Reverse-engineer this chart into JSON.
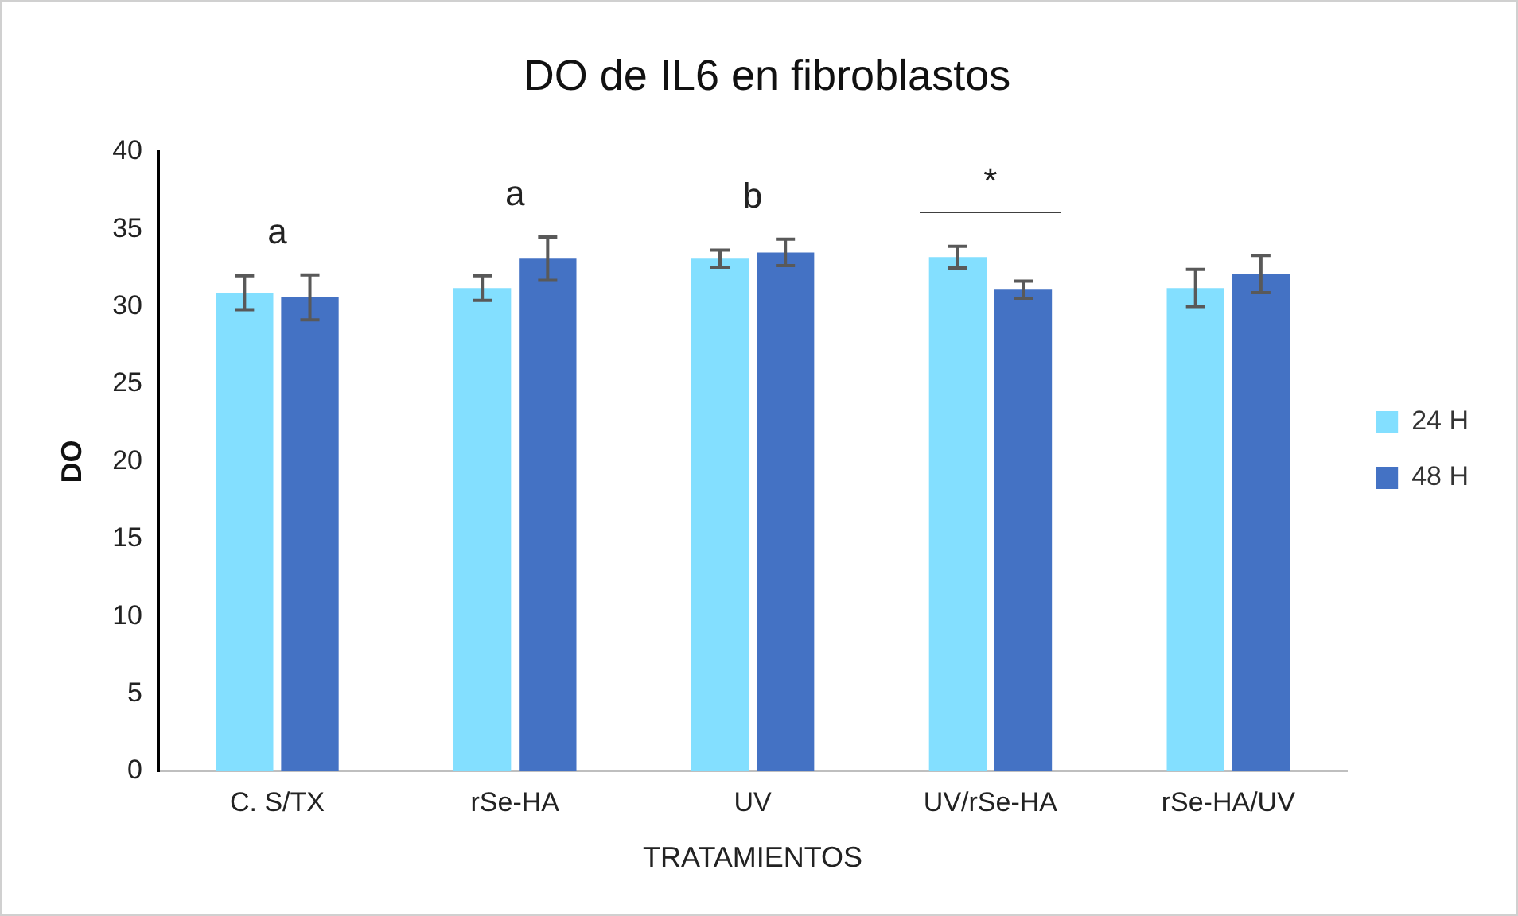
{
  "chart_data": {
    "type": "bar",
    "title": "DO de IL6 en fibroblastos",
    "xlabel": "TRATAMIENTOS",
    "ylabel": "DO",
    "categories": [
      "C. S/TX",
      "rSe-HA",
      "UV",
      "UV/rSe-HA",
      "rSe-HA/UV"
    ],
    "series": [
      {
        "name": "24 H",
        "color": "#83dfff",
        "values": [
          30.9,
          31.2,
          33.1,
          33.2,
          31.2
        ],
        "errors": [
          1.1,
          0.8,
          0.55,
          0.7,
          1.2
        ]
      },
      {
        "name": "48 H",
        "color": "#4472c4",
        "values": [
          30.6,
          33.1,
          33.5,
          31.1,
          32.1
        ],
        "errors": [
          1.45,
          1.4,
          0.85,
          0.55,
          1.2
        ]
      }
    ],
    "annotations": [
      "a",
      "a",
      "b",
      "*"
    ],
    "ylim": [
      0,
      40
    ],
    "yticks": [
      0,
      5,
      10,
      15,
      20,
      25,
      30,
      35,
      40
    ],
    "grid": false,
    "legend": "right"
  }
}
